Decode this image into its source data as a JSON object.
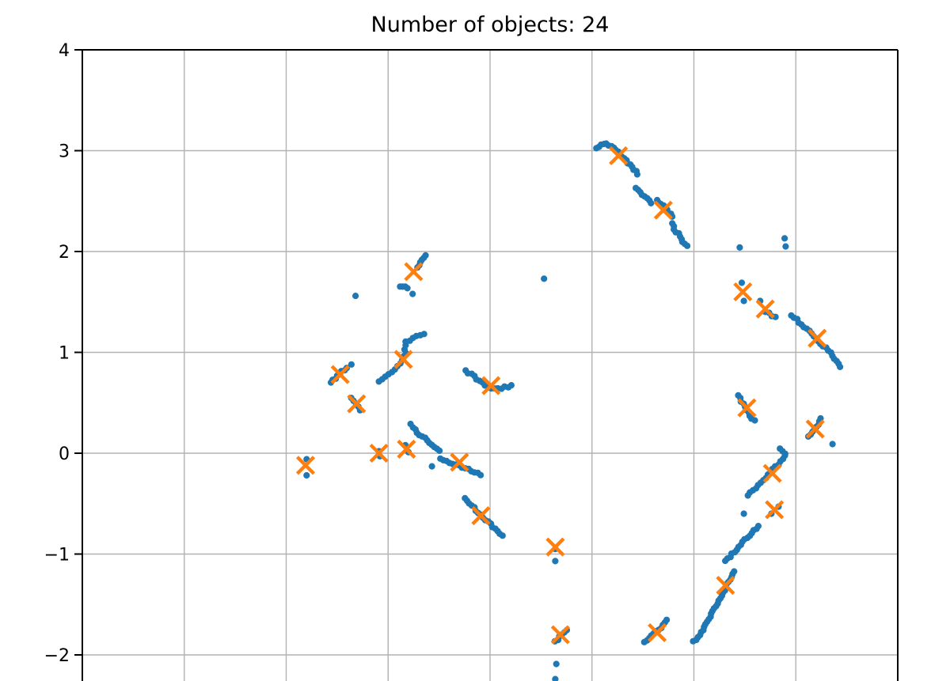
{
  "title": "Number of objects: 24",
  "colors": {
    "points": "#1f77b4",
    "centers": "#ff7f0e",
    "grid": "#b2b2b2",
    "spine": "#000000",
    "background": "#ffffff",
    "title_text": "#000000"
  },
  "chart_data": {
    "type": "scatter",
    "title": "Number of objects: 24",
    "n_objects": 24,
    "legend": "none",
    "grid": true,
    "y_axis": {
      "ticks": [
        4,
        3,
        2,
        1,
        0,
        -1,
        -2
      ],
      "tick_labels": [
        "4",
        "3",
        "2",
        "1",
        "0",
        "−1",
        "−2"
      ],
      "visible_range": [
        -2.26,
        4
      ]
    },
    "x_axis": {
      "note": "x tick labels are cropped out of the visible image; 7 interior gridlines, units 0-8 across plot width",
      "gridline_units": [
        1,
        2,
        3,
        4,
        5,
        6,
        7
      ],
      "range_units": [
        0,
        8
      ],
      "tick_labels_visible": false
    },
    "series": [
      {
        "name": "data points",
        "marker": "dot",
        "color": "#1f77b4"
      },
      {
        "name": "object centers",
        "marker": "x",
        "color": "#ff7f0e"
      }
    ],
    "centers_visible": 23,
    "centers": [
      [
        5.26,
        2.95
      ],
      [
        5.7,
        2.41
      ],
      [
        3.25,
        1.8
      ],
      [
        6.48,
        1.6
      ],
      [
        6.7,
        1.43
      ],
      [
        7.21,
        1.14
      ],
      [
        2.53,
        0.78
      ],
      [
        2.69,
        0.49
      ],
      [
        3.15,
        0.93
      ],
      [
        4.01,
        0.67
      ],
      [
        6.52,
        0.45
      ],
      [
        7.19,
        0.24
      ],
      [
        2.19,
        -0.12
      ],
      [
        2.91,
        0.0
      ],
      [
        3.18,
        0.04
      ],
      [
        3.7,
        -0.09
      ],
      [
        3.91,
        -0.62
      ],
      [
        4.64,
        -0.93
      ],
      [
        6.77,
        -0.2
      ],
      [
        6.79,
        -0.56
      ],
      [
        6.31,
        -1.31
      ],
      [
        4.69,
        -1.8
      ],
      [
        5.64,
        -1.78
      ]
    ],
    "point_chains": [
      {
        "path": [
          [
            5.04,
            3.03
          ],
          [
            5.13,
            3.08
          ],
          [
            5.23,
            3.02
          ],
          [
            5.34,
            2.89
          ],
          [
            5.45,
            2.77
          ]
        ],
        "n": 20
      },
      {
        "path": [
          [
            5.43,
            2.63
          ],
          [
            5.58,
            2.48
          ]
        ],
        "n": 8
      },
      {
        "path": [
          [
            5.64,
            2.51
          ],
          [
            5.79,
            2.35
          ]
        ],
        "n": 9
      },
      {
        "path": [
          [
            5.79,
            2.28
          ],
          [
            5.81,
            2.21
          ],
          [
            5.86,
            2.16
          ],
          [
            5.88,
            2.09
          ],
          [
            5.93,
            2.05
          ]
        ],
        "n": 10
      },
      {
        "path": [
          [
            3.37,
            1.96
          ],
          [
            3.29,
            1.84
          ]
        ],
        "n": 6
      },
      {
        "path": [
          [
            3.12,
            1.66
          ],
          [
            3.19,
            1.64
          ]
        ],
        "n": 4
      },
      {
        "path": [
          [
            6.7,
            1.4
          ],
          [
            6.8,
            1.35
          ]
        ],
        "n": 4
      },
      {
        "path": [
          [
            6.96,
            1.37
          ],
          [
            7.19,
            1.15
          ],
          [
            7.37,
            0.96
          ],
          [
            7.44,
            0.86
          ]
        ],
        "n": 22
      },
      {
        "path": [
          [
            2.44,
            0.7
          ],
          [
            2.59,
            0.85
          ]
        ],
        "n": 8
      },
      {
        "path": [
          [
            2.64,
            0.55
          ],
          [
            2.73,
            0.43
          ]
        ],
        "n": 5
      },
      {
        "path": [
          [
            2.91,
            0.71
          ],
          [
            3.08,
            0.85
          ],
          [
            3.18,
            0.98
          ],
          [
            3.16,
            1.09
          ],
          [
            3.25,
            1.15
          ],
          [
            3.35,
            1.19
          ]
        ],
        "n": 19
      },
      {
        "path": [
          [
            3.76,
            0.82
          ],
          [
            3.95,
            0.68
          ],
          [
            4.06,
            0.63
          ],
          [
            4.21,
            0.67
          ]
        ],
        "n": 16
      },
      {
        "path": [
          [
            3.24,
            0.25
          ],
          [
            3.5,
            0.02
          ]
        ],
        "n": 12
      },
      {
        "path": [
          [
            3.51,
            -0.06
          ],
          [
            3.91,
            -0.21
          ]
        ],
        "n": 14
      },
      {
        "path": [
          [
            3.75,
            -0.45
          ],
          [
            4.12,
            -0.82
          ]
        ],
        "n": 17
      },
      {
        "path": [
          [
            4.64,
            -1.87
          ],
          [
            4.75,
            -1.75
          ]
        ],
        "n": 6
      },
      {
        "path": [
          [
            5.52,
            -1.88
          ],
          [
            5.74,
            -1.66
          ]
        ],
        "n": 11
      },
      {
        "path": [
          [
            6.85,
            0.05
          ],
          [
            6.91,
            -0.02
          ],
          [
            6.53,
            -0.42
          ]
        ],
        "n": 19
      },
      {
        "path": [
          [
            6.63,
            -0.72
          ],
          [
            6.31,
            -1.07
          ]
        ],
        "n": 16
      },
      {
        "path": [
          [
            6.39,
            -1.17
          ],
          [
            6.33,
            -1.29
          ],
          [
            6.22,
            -1.51
          ],
          [
            6.1,
            -1.74
          ],
          [
            6.0,
            -1.87
          ]
        ],
        "n": 28
      },
      {
        "path": [
          [
            7.13,
            0.16
          ],
          [
            7.25,
            0.34
          ]
        ],
        "n": 8
      },
      {
        "path": [
          [
            6.43,
            0.57
          ],
          [
            6.59,
            0.32
          ]
        ],
        "n": 10
      }
    ],
    "single_points": [
      [
        6.45,
        2.04
      ],
      [
        6.89,
        2.13
      ],
      [
        6.9,
        2.05
      ],
      [
        3.24,
        1.58
      ],
      [
        2.68,
        1.56
      ],
      [
        4.53,
        1.73
      ],
      [
        6.47,
        1.69
      ],
      [
        6.49,
        1.51
      ],
      [
        6.65,
        1.51
      ],
      [
        2.64,
        0.88
      ],
      [
        2.2,
        -0.06
      ],
      [
        2.2,
        -0.22
      ],
      [
        2.91,
        0.02
      ],
      [
        2.92,
        -0.03
      ],
      [
        3.17,
        0.08
      ],
      [
        3.2,
        0.01
      ],
      [
        3.22,
        0.29
      ],
      [
        3.43,
        -0.13
      ],
      [
        4.64,
        -0.95
      ],
      [
        4.64,
        -1.07
      ],
      [
        4.65,
        -2.09
      ],
      [
        4.64,
        -2.24
      ],
      [
        6.83,
        -0.53
      ],
      [
        6.76,
        -0.6
      ],
      [
        6.49,
        -0.6
      ],
      [
        7.36,
        0.09
      ]
    ]
  }
}
